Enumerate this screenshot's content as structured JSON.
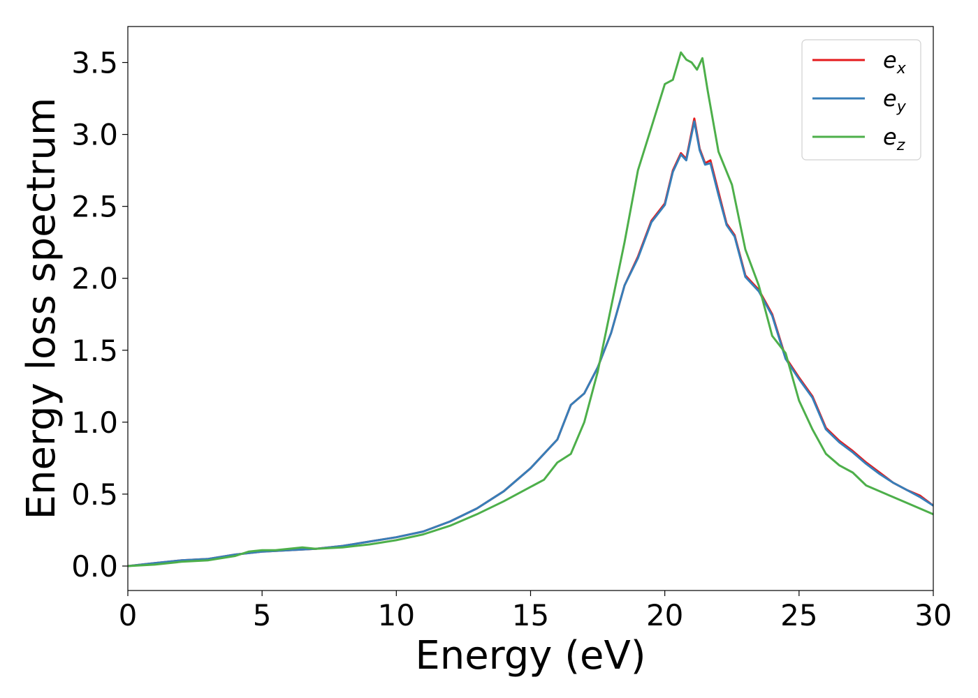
{
  "chart_data": {
    "type": "line",
    "title": "",
    "xlabel": "Energy (eV)",
    "ylabel": "Energy loss spectrum",
    "xlim": [
      0,
      30
    ],
    "ylim": [
      -0.17,
      3.75
    ],
    "xticks": [
      0,
      5,
      10,
      15,
      20,
      25,
      30
    ],
    "xtick_labels": [
      "0",
      "5",
      "10",
      "15",
      "20",
      "25",
      "30"
    ],
    "yticks": [
      0.0,
      0.5,
      1.0,
      1.5,
      2.0,
      2.5,
      3.0,
      3.5
    ],
    "ytick_labels": [
      "0.0",
      "0.5",
      "1.0",
      "1.5",
      "2.0",
      "2.5",
      "3.0",
      "3.5"
    ],
    "grid": false,
    "legend_position": "top-right",
    "series": [
      {
        "name": "e_x",
        "label_main": "e",
        "label_sub": "x",
        "color": "#e41a1c",
        "x": [
          0,
          1,
          2,
          3,
          4,
          5,
          6,
          7,
          8,
          9,
          10,
          11,
          12,
          13,
          14,
          15,
          16,
          16.5,
          17,
          17.5,
          18,
          18.5,
          19,
          19.5,
          20,
          20.3,
          20.6,
          20.8,
          21.1,
          21.3,
          21.5,
          21.7,
          22,
          22.3,
          22.6,
          23,
          23.5,
          24,
          24.5,
          25,
          25.5,
          26,
          26.5,
          27,
          27.5,
          28,
          28.5,
          29,
          29.5,
          30
        ],
        "y": [
          0.0,
          0.02,
          0.04,
          0.05,
          0.08,
          0.1,
          0.11,
          0.12,
          0.14,
          0.17,
          0.2,
          0.24,
          0.31,
          0.4,
          0.52,
          0.68,
          0.88,
          1.12,
          1.2,
          1.38,
          1.62,
          1.95,
          2.15,
          2.4,
          2.52,
          2.75,
          2.87,
          2.83,
          3.11,
          2.9,
          2.8,
          2.82,
          2.6,
          2.38,
          2.3,
          2.02,
          1.92,
          1.75,
          1.45,
          1.31,
          1.18,
          0.96,
          0.87,
          0.8,
          0.72,
          0.65,
          0.58,
          0.53,
          0.49,
          0.42
        ]
      },
      {
        "name": "e_y",
        "label_main": "e",
        "label_sub": "y",
        "color": "#377eb8",
        "x": [
          0,
          1,
          2,
          3,
          4,
          5,
          6,
          7,
          8,
          9,
          10,
          11,
          12,
          13,
          14,
          15,
          16,
          16.5,
          17,
          17.5,
          18,
          18.5,
          19,
          19.5,
          20,
          20.3,
          20.6,
          20.8,
          21.1,
          21.3,
          21.5,
          21.7,
          22,
          22.3,
          22.6,
          23,
          23.5,
          24,
          24.5,
          25,
          25.5,
          26,
          26.5,
          27,
          27.5,
          28,
          28.5,
          29,
          29.5,
          30
        ],
        "y": [
          0.0,
          0.02,
          0.04,
          0.05,
          0.08,
          0.1,
          0.11,
          0.12,
          0.14,
          0.17,
          0.2,
          0.24,
          0.31,
          0.4,
          0.52,
          0.68,
          0.88,
          1.12,
          1.2,
          1.38,
          1.62,
          1.95,
          2.14,
          2.39,
          2.51,
          2.74,
          2.86,
          2.82,
          3.09,
          2.89,
          2.79,
          2.8,
          2.58,
          2.37,
          2.29,
          2.01,
          1.91,
          1.74,
          1.44,
          1.3,
          1.17,
          0.95,
          0.86,
          0.79,
          0.71,
          0.64,
          0.58,
          0.53,
          0.48,
          0.42
        ]
      },
      {
        "name": "e_z",
        "label_main": "e",
        "label_sub": "z",
        "color": "#4daf4a",
        "x": [
          0,
          1,
          2,
          3,
          4,
          4.5,
          5,
          5.5,
          6,
          6.5,
          7,
          8,
          9,
          10,
          11,
          12,
          13,
          14,
          15,
          15.5,
          16,
          16.5,
          17,
          17.5,
          18,
          18.5,
          19,
          19.5,
          20,
          20.3,
          20.6,
          20.8,
          21,
          21.2,
          21.4,
          21.6,
          22,
          22.5,
          23,
          23.5,
          24,
          24.5,
          25,
          25.5,
          26,
          26.5,
          27,
          27.5,
          28,
          28.5,
          29,
          29.5,
          30
        ],
        "y": [
          0.0,
          0.01,
          0.03,
          0.04,
          0.07,
          0.1,
          0.11,
          0.11,
          0.12,
          0.13,
          0.12,
          0.13,
          0.15,
          0.18,
          0.22,
          0.28,
          0.36,
          0.45,
          0.55,
          0.6,
          0.72,
          0.78,
          1.0,
          1.35,
          1.8,
          2.25,
          2.75,
          3.05,
          3.35,
          3.38,
          3.57,
          3.52,
          3.5,
          3.45,
          3.53,
          3.3,
          2.88,
          2.65,
          2.2,
          1.95,
          1.6,
          1.48,
          1.15,
          0.95,
          0.78,
          0.7,
          0.65,
          0.56,
          0.52,
          0.48,
          0.44,
          0.4,
          0.36
        ]
      }
    ]
  }
}
